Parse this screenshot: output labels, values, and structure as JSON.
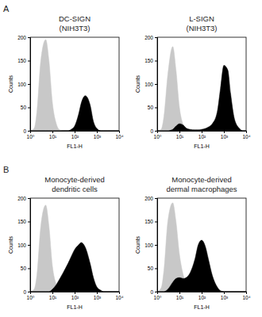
{
  "chart_data": [
    {
      "type": "area",
      "panel": "A",
      "title": "DC-SIGN",
      "subtitle": "(NIH3T3)",
      "xlabel": "FL1-H",
      "ylabel": "Counts",
      "log": "x",
      "xlim": [
        1,
        10000
      ],
      "ylim": [
        0,
        200
      ],
      "xticks": [
        {
          "value": 1,
          "label": "10⁰"
        },
        {
          "value": 10,
          "label": "10¹"
        },
        {
          "value": 100,
          "label": "10²"
        },
        {
          "value": 1000,
          "label": "10³"
        },
        {
          "value": 10000,
          "label": "10⁴"
        }
      ],
      "yticks": [
        0,
        50,
        100,
        150,
        200
      ],
      "x": [
        1,
        1.5,
        2,
        3,
        5,
        7,
        10,
        15,
        20,
        30,
        50,
        70,
        100,
        150,
        200,
        300,
        500,
        700,
        1000,
        1500,
        2000,
        3000,
        5000,
        7000,
        10000
      ],
      "series": [
        {
          "color": "#c8c8c8",
          "values": [
            0,
            5,
            40,
            150,
            195,
            150,
            60,
            15,
            3,
            0,
            0,
            0,
            0,
            0,
            0,
            0,
            0,
            0,
            0,
            0,
            0,
            0,
            0,
            0,
            0
          ]
        },
        {
          "color": "#000000",
          "values": [
            0,
            0,
            0,
            0,
            0,
            0,
            0,
            0,
            0,
            0,
            0,
            3,
            10,
            35,
            60,
            75,
            55,
            20,
            5,
            0,
            0,
            0,
            0,
            0,
            0
          ]
        }
      ]
    },
    {
      "type": "area",
      "title": "L-SIGN",
      "subtitle": "(NIH3T3)",
      "xlabel": "FL1-H",
      "ylabel": "Counts",
      "log": "x",
      "xlim": [
        1,
        10000
      ],
      "ylim": [
        0,
        200
      ],
      "xticks": [
        {
          "value": 1,
          "label": "10⁰"
        },
        {
          "value": 10,
          "label": "10¹"
        },
        {
          "value": 100,
          "label": "10²"
        },
        {
          "value": 1000,
          "label": "10³"
        },
        {
          "value": 10000,
          "label": "10⁴"
        }
      ],
      "yticks": [
        0,
        50,
        100,
        150,
        200
      ],
      "x": [
        1,
        1.5,
        2,
        3,
        5,
        7,
        10,
        15,
        20,
        30,
        50,
        70,
        100,
        150,
        200,
        300,
        500,
        700,
        1000,
        1500,
        2000,
        3000,
        5000,
        7000,
        10000
      ],
      "series": [
        {
          "color": "#c8c8c8",
          "values": [
            0,
            3,
            30,
            120,
            180,
            130,
            50,
            12,
            2,
            0,
            0,
            0,
            0,
            0,
            0,
            0,
            0,
            0,
            0,
            0,
            0,
            0,
            0,
            0,
            0
          ]
        },
        {
          "color": "#000000",
          "values": [
            0,
            0,
            0,
            0,
            3,
            10,
            15,
            12,
            6,
            3,
            2,
            2,
            3,
            5,
            8,
            15,
            40,
            90,
            140,
            130,
            80,
            25,
            5,
            0,
            0
          ]
        }
      ]
    },
    {
      "type": "area",
      "panel": "B",
      "title": "Monocyte-derived",
      "subtitle": "dendritic cells",
      "xlabel": "FL1-H",
      "ylabel": "Counts",
      "log": "x",
      "xlim": [
        1,
        10000
      ],
      "ylim": [
        0,
        200
      ],
      "xticks": [
        {
          "value": 1,
          "label": "10⁰"
        },
        {
          "value": 10,
          "label": "10¹"
        },
        {
          "value": 100,
          "label": "10²"
        },
        {
          "value": 1000,
          "label": "10³"
        },
        {
          "value": 10000,
          "label": "10⁴"
        }
      ],
      "yticks": [
        0,
        50,
        100,
        150,
        200
      ],
      "x": [
        1,
        1.5,
        2,
        3,
        5,
        7,
        10,
        15,
        20,
        30,
        50,
        70,
        100,
        150,
        200,
        300,
        500,
        700,
        1000,
        1500,
        2000,
        3000,
        5000,
        7000,
        10000
      ],
      "series": [
        {
          "color": "#c8c8c8",
          "values": [
            0,
            5,
            35,
            140,
            185,
            140,
            55,
            15,
            4,
            0,
            0,
            0,
            0,
            0,
            0,
            0,
            0,
            0,
            0,
            0,
            0,
            0,
            0,
            0,
            0
          ]
        },
        {
          "color": "#000000",
          "values": [
            0,
            0,
            0,
            0,
            0,
            0,
            5,
            15,
            25,
            40,
            60,
            75,
            90,
            100,
            105,
            95,
            60,
            30,
            10,
            3,
            0,
            0,
            0,
            0,
            0
          ]
        }
      ]
    },
    {
      "type": "area",
      "title": "Monocyte-derived",
      "subtitle": "dermal macrophages",
      "xlabel": "FL1-H",
      "ylabel": "Counts",
      "log": "x",
      "xlim": [
        1,
        10000
      ],
      "ylim": [
        0,
        200
      ],
      "xticks": [
        {
          "value": 1,
          "label": "10⁰"
        },
        {
          "value": 10,
          "label": "10¹"
        },
        {
          "value": 100,
          "label": "10²"
        },
        {
          "value": 1000,
          "label": "10³"
        },
        {
          "value": 10000,
          "label": "10⁴"
        }
      ],
      "yticks": [
        0,
        50,
        100,
        150,
        200
      ],
      "x": [
        1,
        1.5,
        2,
        3,
        5,
        7,
        10,
        15,
        20,
        30,
        50,
        70,
        100,
        150,
        200,
        300,
        500,
        700,
        1000,
        1500,
        2000,
        3000,
        5000,
        7000,
        10000
      ],
      "series": [
        {
          "color": "#c8c8c8",
          "values": [
            0,
            8,
            45,
            150,
            190,
            150,
            80,
            35,
            15,
            5,
            0,
            0,
            0,
            0,
            0,
            0,
            0,
            0,
            0,
            0,
            0,
            0,
            0,
            0,
            0
          ]
        },
        {
          "color": "#000000",
          "values": [
            0,
            0,
            0,
            5,
            20,
            28,
            30,
            28,
            30,
            40,
            70,
            100,
            110,
            95,
            70,
            35,
            10,
            2,
            0,
            0,
            0,
            0,
            0,
            0,
            0
          ]
        }
      ]
    }
  ]
}
